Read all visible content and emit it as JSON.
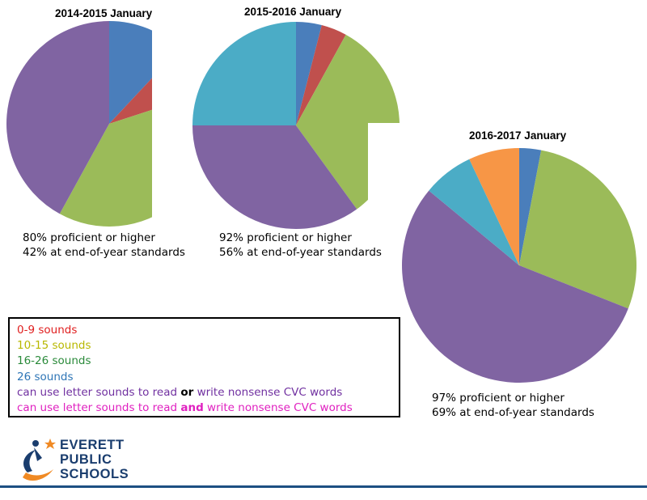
{
  "colors": {
    "blue": "#4a7ebb",
    "red": "#c0504d",
    "green": "#9bbb59",
    "purple": "#8064a2",
    "teal": "#4bacc6",
    "orange": "#f79646",
    "legend_red": "#e02020",
    "legend_yellow": "#b8b800",
    "legend_green": "#2a8a3a",
    "legend_blue": "#2e75b6",
    "legend_purple": "#7030a0",
    "legend_magenta": "#e020c0",
    "logo_navy": "#1a3d6e",
    "logo_orange": "#f08a24",
    "rule": "#1d4f82"
  },
  "chart_data": [
    {
      "type": "pie",
      "title": "2014-2015 January",
      "slices": [
        {
          "label": "26 sounds",
          "value": 12,
          "color": "blue"
        },
        {
          "label": "0-9 sounds",
          "value": 8,
          "color": "red"
        },
        {
          "label": "10-15 sounds",
          "value": 38,
          "color": "green"
        },
        {
          "label": "can use letter sounds to read or write nonsense CVC words",
          "value": 42,
          "color": "purple"
        }
      ],
      "captions": [
        "80% proficient or higher",
        "42% at end-of-year standards"
      ]
    },
    {
      "type": "pie",
      "title": "2015-2016 January",
      "slices": [
        {
          "label": "26 sounds",
          "value": 4,
          "color": "blue"
        },
        {
          "label": "0-9 sounds",
          "value": 4,
          "color": "red"
        },
        {
          "label": "10-15 sounds",
          "value": 32,
          "color": "green"
        },
        {
          "label": "can use letter sounds to read or write nonsense CVC words",
          "value": 35,
          "color": "purple"
        },
        {
          "label": "16-26 sounds",
          "value": 25,
          "color": "teal"
        }
      ],
      "captions": [
        "92% proficient or higher",
        "56% at end-of-year standards"
      ]
    },
    {
      "type": "pie",
      "title": "2016-2017 January",
      "slices": [
        {
          "label": "26 sounds",
          "value": 3,
          "color": "blue"
        },
        {
          "label": "10-15 sounds",
          "value": 28,
          "color": "green"
        },
        {
          "label": "can use letter sounds to read or write nonsense CVC words",
          "value": 55,
          "color": "purple"
        },
        {
          "label": "16-26 sounds",
          "value": 7,
          "color": "teal"
        },
        {
          "label": "0-9 sounds",
          "value": 7,
          "color": "orange"
        }
      ],
      "captions": [
        "97% proficient or higher",
        "69% at end-of-year standards"
      ]
    }
  ],
  "legend": {
    "items": [
      {
        "text": "0-9 sounds",
        "color": "legend_red"
      },
      {
        "text": "10-15 sounds",
        "color": "legend_yellow"
      },
      {
        "text": "16-26 sounds",
        "color": "legend_green"
      },
      {
        "text": "26 sounds",
        "color": "legend_blue"
      }
    ],
    "or_item": {
      "before": "can use letter sounds to read ",
      "emph": "or",
      "after": " write nonsense CVC words",
      "color": "legend_purple"
    },
    "and_item": {
      "before": "can use letter sounds to read ",
      "emph": "and",
      "after": " write nonsense CVC words",
      "color": "legend_magenta"
    }
  },
  "logo": {
    "line1": "EVERETT",
    "line2": "PUBLIC",
    "line3": "SCHOOLS"
  }
}
